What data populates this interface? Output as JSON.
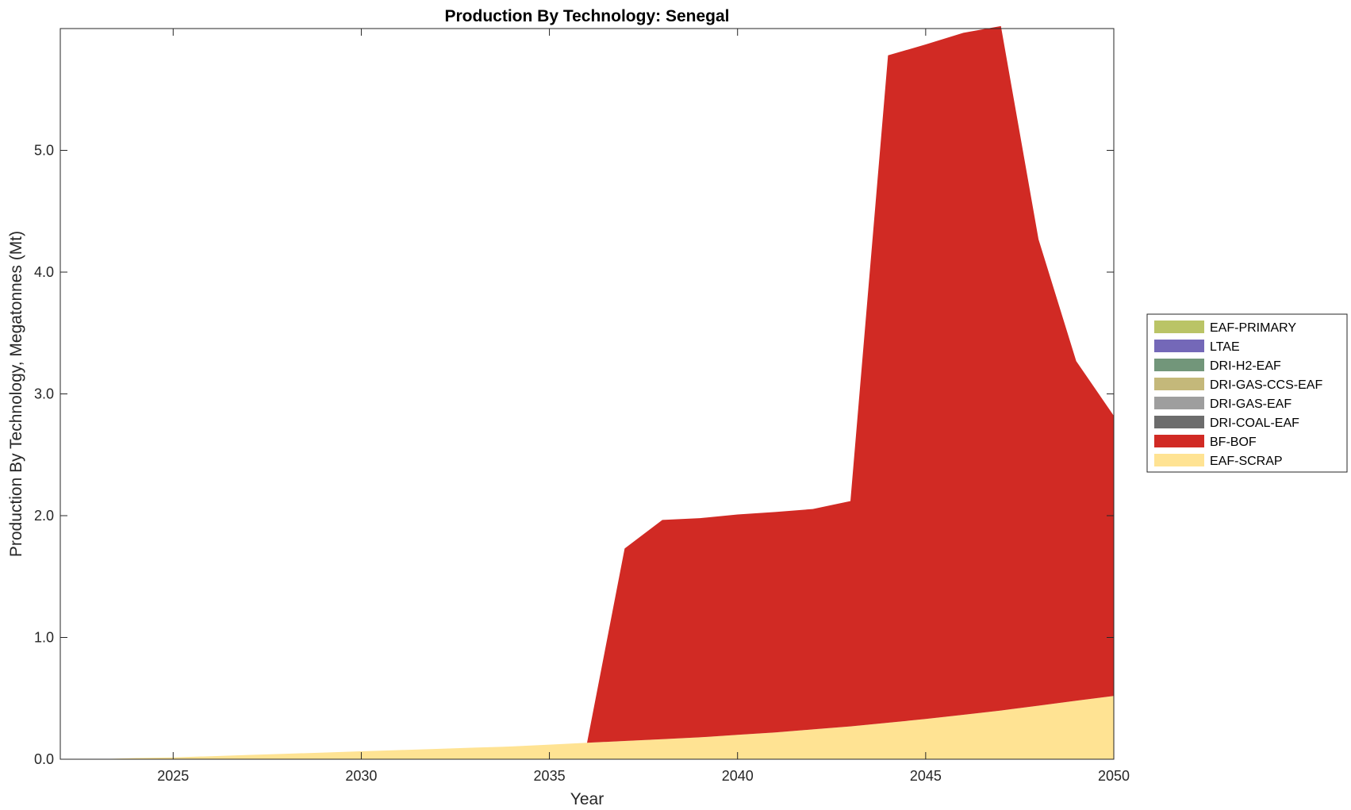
{
  "chart_data": {
    "type": "area",
    "stacked": true,
    "title": "Production By Technology: Senegal",
    "xlabel": "Year",
    "ylabel": "Production By Technology, Megatonnes (Mt)",
    "xlim": [
      2022,
      2050
    ],
    "ylim": [
      0,
      6.0
    ],
    "xticks": [
      2025,
      2030,
      2035,
      2040,
      2045,
      2050
    ],
    "yticks": [
      0.0,
      1.0,
      2.0,
      3.0,
      4.0,
      5.0
    ],
    "ytick_labels": [
      "0.0",
      "1.0",
      "2.0",
      "3.0",
      "4.0",
      "5.0"
    ],
    "grid": false,
    "legend_position": "right",
    "x": [
      2022,
      2023,
      2024,
      2025,
      2026,
      2027,
      2028,
      2029,
      2030,
      2031,
      2032,
      2033,
      2034,
      2035,
      2036,
      2037,
      2038,
      2039,
      2040,
      2041,
      2042,
      2043,
      2044,
      2045,
      2046,
      2047,
      2048,
      2049,
      2050
    ],
    "series": [
      {
        "name": "EAF-SCRAP",
        "color": "#FFE393",
        "values": [
          0.0,
          0.0,
          0.01,
          0.015,
          0.025,
          0.035,
          0.045,
          0.055,
          0.065,
          0.075,
          0.085,
          0.095,
          0.105,
          0.12,
          0.135,
          0.15,
          0.165,
          0.18,
          0.2,
          0.22,
          0.245,
          0.27,
          0.3,
          0.33,
          0.365,
          0.4,
          0.44,
          0.48,
          0.52
        ]
      },
      {
        "name": "BF-BOF",
        "color": "#D12A24",
        "values": [
          0,
          0,
          0,
          0,
          0,
          0,
          0,
          0,
          0,
          0,
          0,
          0,
          0,
          0,
          0,
          1.58,
          1.8,
          1.8,
          1.81,
          1.81,
          1.81,
          1.85,
          5.48,
          5.54,
          5.6,
          5.62,
          3.83,
          2.79,
          2.3
        ]
      },
      {
        "name": "DRI-COAL-EAF",
        "color": "#6C6C6C",
        "values": [
          0,
          0,
          0,
          0,
          0,
          0,
          0,
          0,
          0,
          0,
          0,
          0,
          0,
          0,
          0,
          0,
          0,
          0,
          0,
          0,
          0,
          0,
          0,
          0,
          0,
          0,
          0,
          0,
          0
        ]
      },
      {
        "name": "DRI-GAS-EAF",
        "color": "#9E9E9E",
        "values": [
          0,
          0,
          0,
          0,
          0,
          0,
          0,
          0,
          0,
          0,
          0,
          0,
          0,
          0,
          0,
          0,
          0,
          0,
          0,
          0,
          0,
          0,
          0,
          0,
          0,
          0,
          0,
          0,
          0
        ]
      },
      {
        "name": "DRI-GAS-CCS-EAF",
        "color": "#C4B87A",
        "values": [
          0,
          0,
          0,
          0,
          0,
          0,
          0,
          0,
          0,
          0,
          0,
          0,
          0,
          0,
          0,
          0,
          0,
          0,
          0,
          0,
          0,
          0,
          0,
          0,
          0,
          0,
          0,
          0,
          0
        ]
      },
      {
        "name": "DRI-H2-EAF",
        "color": "#72967A",
        "values": [
          0,
          0,
          0,
          0,
          0,
          0,
          0,
          0,
          0,
          0,
          0,
          0,
          0,
          0,
          0,
          0,
          0,
          0,
          0,
          0,
          0,
          0,
          0,
          0,
          0,
          0,
          0,
          0,
          0
        ]
      },
      {
        "name": "LTAE",
        "color": "#7468B8",
        "values": [
          0,
          0,
          0,
          0,
          0,
          0,
          0,
          0,
          0,
          0,
          0,
          0,
          0,
          0,
          0,
          0,
          0,
          0,
          0,
          0,
          0,
          0,
          0,
          0,
          0,
          0,
          0,
          0,
          0
        ]
      },
      {
        "name": "EAF-PRIMARY",
        "color": "#BAC466",
        "values": [
          0,
          0,
          0,
          0,
          0,
          0,
          0,
          0,
          0,
          0,
          0,
          0,
          0,
          0,
          0,
          0,
          0,
          0,
          0,
          0,
          0,
          0,
          0,
          0,
          0,
          0,
          0,
          0,
          0
        ]
      }
    ],
    "legend_order": [
      "EAF-PRIMARY",
      "LTAE",
      "DRI-H2-EAF",
      "DRI-GAS-CCS-EAF",
      "DRI-GAS-EAF",
      "DRI-COAL-EAF",
      "BF-BOF",
      "EAF-SCRAP"
    ]
  }
}
